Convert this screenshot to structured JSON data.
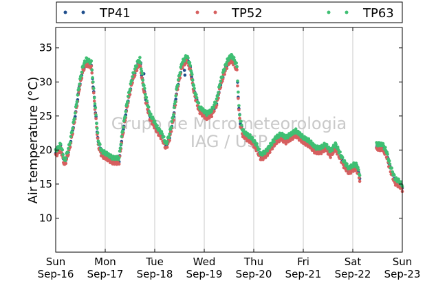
{
  "chart_data": {
    "type": "scatter",
    "title": "",
    "xlabel": "",
    "ylabel": "Air temperature (°C)",
    "xlim": [
      0,
      7
    ],
    "ylim": [
      5,
      38
    ],
    "y_ticks": [
      10,
      15,
      20,
      25,
      30,
      35
    ],
    "x_ticks": [
      {
        "x": 0,
        "day": "Sun",
        "date": "Sep-16"
      },
      {
        "x": 1,
        "day": "Mon",
        "date": "Sep-17"
      },
      {
        "x": 2,
        "day": "Tue",
        "date": "Sep-18"
      },
      {
        "x": 3,
        "day": "Wed",
        "date": "Sep-19"
      },
      {
        "x": 4,
        "day": "Thu",
        "date": "Sep-20"
      },
      {
        "x": 5,
        "day": "Fri",
        "date": "Sep-21"
      },
      {
        "x": 6,
        "day": "Sat",
        "date": "Sep-22"
      },
      {
        "x": 7,
        "day": "Sun",
        "date": "Sep-23"
      }
    ],
    "grid": "vertical",
    "legend_position": "top",
    "series": [
      {
        "name": "TP41",
        "color": "#1f4e8c",
        "offset": 0.0,
        "outliers": [
          [
            1.72,
            32.8
          ],
          [
            1.78,
            31.2
          ],
          [
            2.6,
            31.7
          ],
          [
            2.61,
            31.0
          ]
        ]
      },
      {
        "name": "TP52",
        "color": "#d65f5f",
        "offset": -0.35,
        "outliers": []
      },
      {
        "name": "TP63",
        "color": "#3fbf73",
        "offset": 0.35,
        "outliers": []
      }
    ],
    "profile": [
      [
        0.0,
        19.5
      ],
      [
        0.1,
        20.5
      ],
      [
        0.18,
        18.0
      ],
      [
        0.28,
        20.5
      ],
      [
        0.38,
        24.5
      ],
      [
        0.48,
        29.5
      ],
      [
        0.55,
        32.0
      ],
      [
        0.62,
        33.0
      ],
      [
        0.72,
        32.5
      ],
      [
        0.78,
        27.5
      ],
      [
        0.86,
        21.0
      ],
      [
        0.93,
        19.5
      ],
      [
        1.05,
        19.0
      ],
      [
        1.15,
        18.5
      ],
      [
        1.28,
        18.5
      ],
      [
        1.33,
        21.5
      ],
      [
        1.45,
        27.0
      ],
      [
        1.55,
        30.5
      ],
      [
        1.65,
        32.5
      ],
      [
        1.7,
        33.0
      ],
      [
        1.76,
        30.0
      ],
      [
        1.82,
        27.5
      ],
      [
        1.9,
        25.0
      ],
      [
        1.98,
        24.0
      ],
      [
        2.05,
        23.0
      ],
      [
        2.15,
        22.0
      ],
      [
        2.23,
        20.5
      ],
      [
        2.3,
        22.0
      ],
      [
        2.38,
        25.0
      ],
      [
        2.45,
        29.0
      ],
      [
        2.55,
        32.5
      ],
      [
        2.65,
        33.5
      ],
      [
        2.72,
        32.0
      ],
      [
        2.8,
        28.5
      ],
      [
        2.9,
        26.0
      ],
      [
        3.05,
        25.0
      ],
      [
        3.15,
        25.5
      ],
      [
        3.25,
        27.0
      ],
      [
        3.32,
        29.5
      ],
      [
        3.4,
        31.5
      ],
      [
        3.48,
        33.0
      ],
      [
        3.55,
        33.5
      ],
      [
        3.6,
        33.0
      ],
      [
        3.66,
        32.0
      ],
      [
        3.7,
        26.0
      ],
      [
        3.73,
        24.0
      ],
      [
        3.78,
        22.5
      ],
      [
        3.85,
        22.0
      ],
      [
        3.95,
        21.5
      ],
      [
        4.05,
        20.5
      ],
      [
        4.15,
        19.0
      ],
      [
        4.25,
        19.5
      ],
      [
        4.35,
        20.5
      ],
      [
        4.45,
        21.5
      ],
      [
        4.55,
        22.0
      ],
      [
        4.65,
        21.5
      ],
      [
        4.75,
        22.0
      ],
      [
        4.85,
        22.5
      ],
      [
        5.0,
        21.5
      ],
      [
        5.12,
        21.0
      ],
      [
        5.25,
        20.0
      ],
      [
        5.35,
        20.0
      ],
      [
        5.45,
        20.5
      ],
      [
        5.55,
        19.5
      ],
      [
        5.65,
        20.5
      ],
      [
        5.72,
        19.5
      ],
      [
        5.82,
        18.0
      ],
      [
        5.92,
        17.0
      ],
      [
        6.02,
        17.5
      ],
      [
        6.08,
        17.5
      ],
      [
        6.14,
        16.0
      ]
    ],
    "gap": [
      6.15,
      6.48
    ],
    "profile2": [
      [
        6.48,
        20.5
      ],
      [
        6.6,
        20.5
      ],
      [
        6.68,
        19.5
      ],
      [
        6.75,
        17.5
      ],
      [
        6.85,
        15.5
      ],
      [
        6.95,
        15.0
      ],
      [
        7.0,
        14.5
      ]
    ]
  },
  "legend": [
    {
      "label": "TP41",
      "color": "#1f4e8c"
    },
    {
      "label": "TP52",
      "color": "#d65f5f"
    },
    {
      "label": "TP63",
      "color": "#3fbf73"
    }
  ],
  "watermark": {
    "line1": "Grupo de Micrometeorologia",
    "line2": "IAG / USP"
  }
}
